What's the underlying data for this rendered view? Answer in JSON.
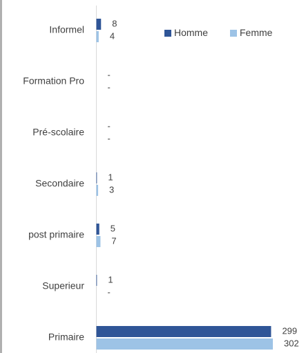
{
  "chart_data": {
    "type": "bar",
    "orientation": "horizontal",
    "categories": [
      "Informel",
      "Formation Pro",
      "Pré-scolaire",
      "Secondaire",
      "post primaire",
      "Superieur",
      "Primaire"
    ],
    "series": [
      {
        "name": "Homme",
        "color": "#2f5597",
        "values": [
          8,
          null,
          null,
          1,
          5,
          1,
          299
        ],
        "value_labels": [
          "8",
          "-",
          "-",
          "1",
          "5",
          "1",
          "299"
        ]
      },
      {
        "name": "Femme",
        "color": "#9dc3e6",
        "values": [
          4,
          null,
          null,
          3,
          7,
          null,
          302
        ],
        "value_labels": [
          "4",
          "-",
          "-",
          "3",
          "7",
          "-",
          "302"
        ]
      }
    ],
    "legend": "top-right"
  }
}
